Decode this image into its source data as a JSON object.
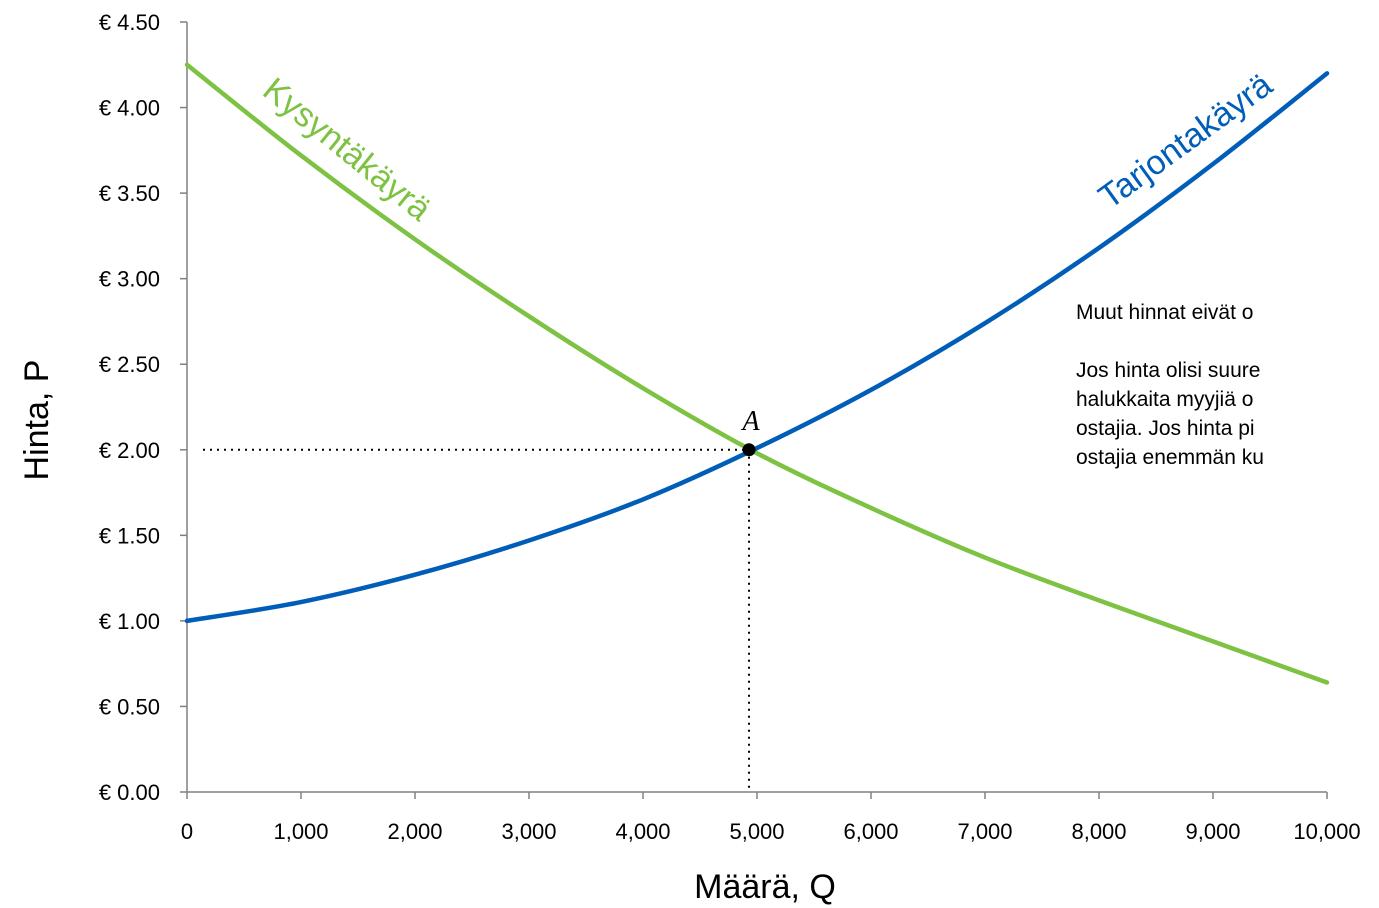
{
  "chart_data": {
    "type": "line",
    "xlabel": "Määrä, Q",
    "ylabel": "Hinta, P",
    "xlim": [
      0,
      10000
    ],
    "ylim": [
      0,
      4.5
    ],
    "x_ticks": [
      "0",
      "1,000",
      "2,000",
      "3,000",
      "4,000",
      "5,000",
      "6,000",
      "7,000",
      "8,000",
      "9,000",
      "10,000"
    ],
    "y_ticks": [
      "€ 0.00",
      "€ 0.50",
      "€ 1.00",
      "€ 1.50",
      "€ 2.00",
      "€ 2.50",
      "€ 3.00",
      "€ 3.50",
      "€ 4.00",
      "€ 4.50"
    ],
    "series": [
      {
        "name": "Kysyntäkäyrä",
        "color": "#7dc242",
        "x": [
          0,
          1000,
          2000,
          3000,
          4000,
          5000,
          6000,
          7000,
          8000,
          9000,
          10000
        ],
        "values": [
          4.25,
          3.72,
          3.23,
          2.78,
          2.36,
          1.98,
          1.66,
          1.37,
          1.12,
          0.88,
          0.64
        ]
      },
      {
        "name": "Tarjontakäyrä",
        "color": "#005eb8",
        "x": [
          0,
          1000,
          2000,
          3000,
          4000,
          5000,
          6000,
          7000,
          8000,
          9000,
          10000
        ],
        "values": [
          1.0,
          1.11,
          1.27,
          1.47,
          1.71,
          2.01,
          2.35,
          2.74,
          3.18,
          3.67,
          4.2
        ]
      }
    ],
    "point": {
      "label": "A",
      "x": 4930,
      "y": 2.0
    },
    "grid": false,
    "legend": "none"
  },
  "notes": {
    "text1": "Muut hinnat eivät o",
    "text2": "Jos hinta olisi suure\nhalukkaita myyjiä o\nostajia. Jos hinta pi\nostajia enemmän ku"
  }
}
